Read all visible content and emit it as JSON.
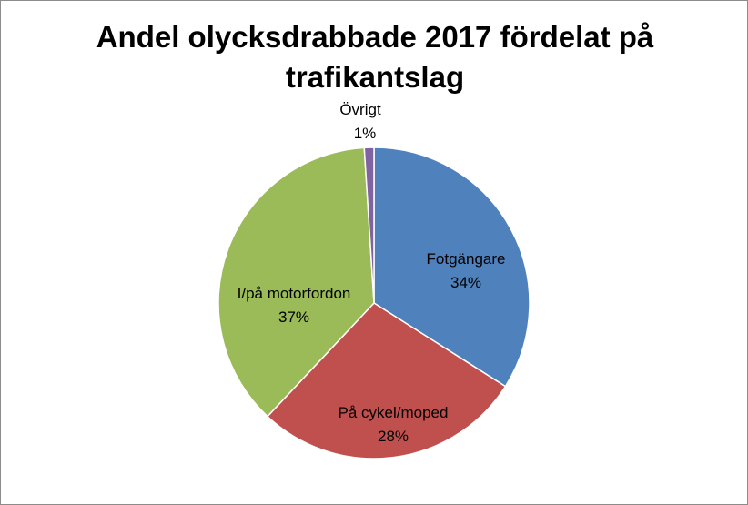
{
  "chart_data": {
    "type": "pie",
    "title_lines": [
      "Andel olycksdrabbade 2017 fördelat på",
      "trafikantslag"
    ],
    "slices": [
      {
        "name": "Fotgängare",
        "value": 34,
        "label": "34%",
        "color": "#4f81bd"
      },
      {
        "name": "På cykel/moped",
        "value": 28,
        "label": "28%",
        "color": "#c0504d"
      },
      {
        "name": "I/på motorfordon",
        "value": 37,
        "label": "37%",
        "color": "#9bbb59"
      },
      {
        "name": "Övrigt",
        "value": 1,
        "label": "1%",
        "color": "#8064a2"
      }
    ],
    "legend": "none",
    "data_labels": "category name and percentage"
  }
}
